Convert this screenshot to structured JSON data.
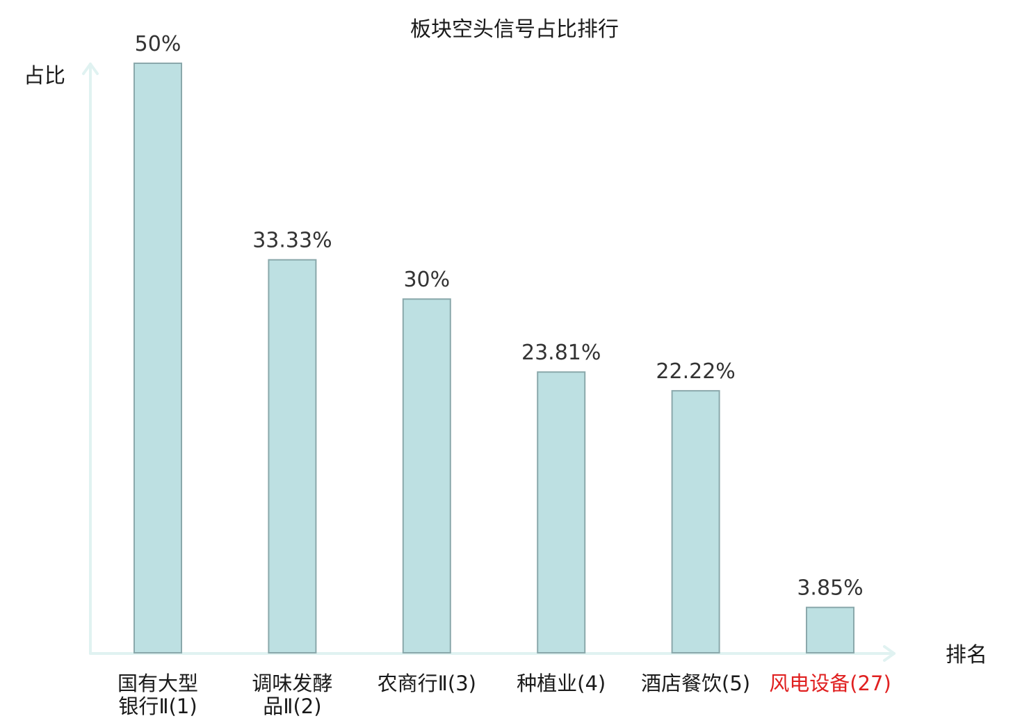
{
  "chart_data": {
    "type": "bar",
    "title": "板块空头信号占比排行",
    "ylabel": "占比",
    "xlabel": "排名",
    "categories": [
      {
        "lines": [
          "国有大型",
          "银行Ⅱ(1)"
        ],
        "highlight": false
      },
      {
        "lines": [
          "调味发酵",
          "品Ⅱ(2)"
        ],
        "highlight": false
      },
      {
        "lines": [
          "农商行Ⅱ(3)"
        ],
        "highlight": false
      },
      {
        "lines": [
          "种植业(4)"
        ],
        "highlight": false
      },
      {
        "lines": [
          "酒店餐饮(5)"
        ],
        "highlight": false
      },
      {
        "lines": [
          "风电设备(27)"
        ],
        "highlight": true
      }
    ],
    "values": [
      50,
      33.33,
      30,
      23.81,
      22.22,
      3.85
    ],
    "value_labels": [
      "50%",
      "33.33%",
      "30%",
      "23.81%",
      "22.22%",
      "3.85%"
    ],
    "ylim": [
      0,
      50
    ],
    "grid": false,
    "colors": {
      "bar_fill": "#bde0e2",
      "bar_stroke": "#8aa8ab",
      "axis": "#e0f2f1",
      "text": "#1a1a1a",
      "highlight": "#e02020"
    }
  }
}
